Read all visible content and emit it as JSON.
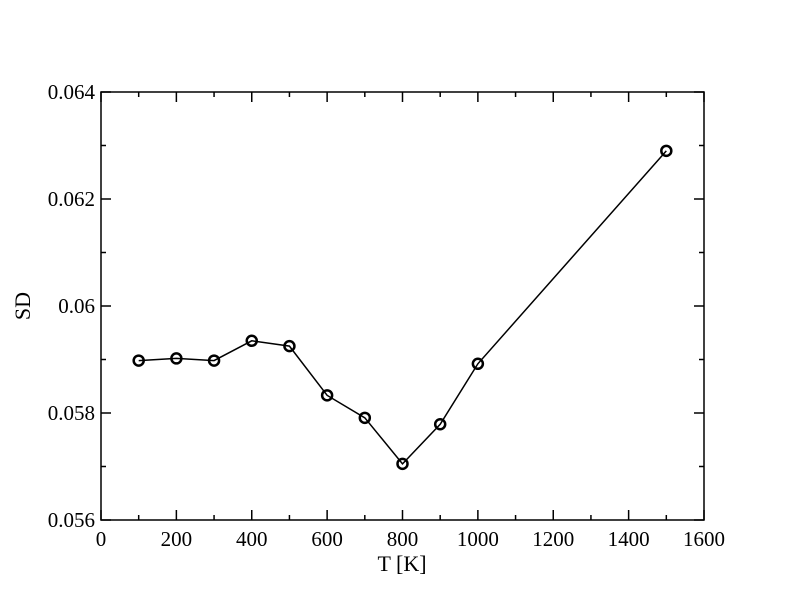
{
  "chart_data": {
    "type": "line",
    "xlabel": "T [K]",
    "ylabel": "SD",
    "xlim": [
      0,
      1600
    ],
    "ylim": [
      0.056,
      0.064
    ],
    "x_ticks": [
      "0",
      "200",
      "400",
      "600",
      "800",
      "1000",
      "1200",
      "1400",
      "1600"
    ],
    "y_ticks": [
      "0.056",
      "0.058",
      "0.06",
      "0.062",
      "0.064"
    ],
    "grid": false,
    "series": [
      {
        "marker": "circle",
        "x": [
          100,
          200,
          300,
          400,
          500,
          600,
          700,
          800,
          900,
          1000,
          1500
        ],
        "y": [
          0.05898,
          0.05902,
          0.05898,
          0.05935,
          0.05925,
          0.05833,
          0.05791,
          0.05705,
          0.05779,
          0.05892,
          0.0629
        ]
      }
    ],
    "colors": {
      "line": "#000000",
      "marker": "#000000",
      "background": "#ffffff"
    }
  }
}
